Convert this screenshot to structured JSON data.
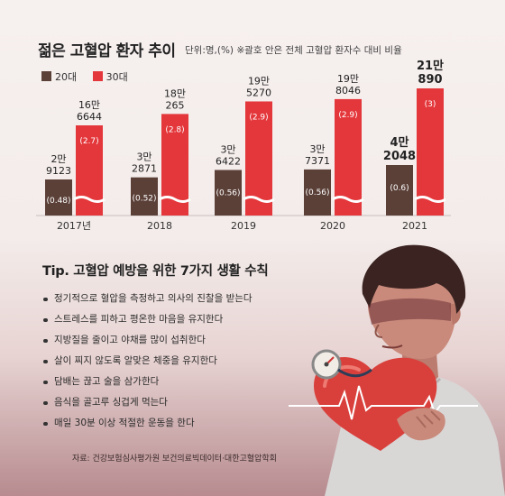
{
  "header": {
    "title": "젊은 고혈압 환자 추이",
    "unit_note": "단위:명,(%)  ※괄호 안은 전체 고혈압 환자수 대비 비율"
  },
  "legend": [
    {
      "label": "20대",
      "color": "#5b4038"
    },
    {
      "label": "30대",
      "color": "#e4373b"
    }
  ],
  "chart_data": {
    "type": "bar",
    "title": "젊은 고혈압 환자 추이",
    "categories": [
      "2017년",
      "2018",
      "2019",
      "2020",
      "2021"
    ],
    "axis_break": true,
    "series": [
      {
        "name": "20대",
        "color": "#5b4038",
        "values": [
          29123,
          32871,
          36422,
          37371,
          42048
        ],
        "value_labels": [
          [
            "2만",
            "9123"
          ],
          [
            "3만",
            "2871"
          ],
          [
            "3만",
            "6422"
          ],
          [
            "3만",
            "7371"
          ],
          [
            "4만",
            "2048"
          ]
        ],
        "share_labels": [
          "(0.48)",
          "(0.52)",
          "(0.56)",
          "(0.56)",
          "(0.6)"
        ]
      },
      {
        "name": "30대",
        "color": "#e4373b",
        "values": [
          166644,
          180265,
          195270,
          198046,
          210890
        ],
        "value_labels": [
          [
            "16만",
            "6644"
          ],
          [
            "18만",
            "265"
          ],
          [
            "19만",
            "5270"
          ],
          [
            "19만",
            "8046"
          ],
          [
            "21만",
            "890"
          ]
        ],
        "share_labels": [
          "(2.7)",
          "(2.8)",
          "(2.9)",
          "(2.9)",
          "(3)"
        ]
      }
    ]
  },
  "tips": {
    "title": "Tip. 고혈압 예방을 위한 7가지 생활 수칙",
    "items": [
      "정기적으로 혈압을 측정하고 의사의 진찰을 받는다",
      "스트레스를 피하고 평온한 마음을 유지한다",
      "지방질을 줄이고 야채를 많이 섭취한다",
      "살이 찌지 않도록 알맞은 체중을 유지한다",
      "담배는 끊고 술을 삼가한다",
      "음식을 골고루 싱겁게 먹는다",
      "매일 30분 이상 적절한 운동을 한다"
    ]
  },
  "source": "자료: 건강보험심사평가원 보건의료빅데이터·대한고혈압학회"
}
